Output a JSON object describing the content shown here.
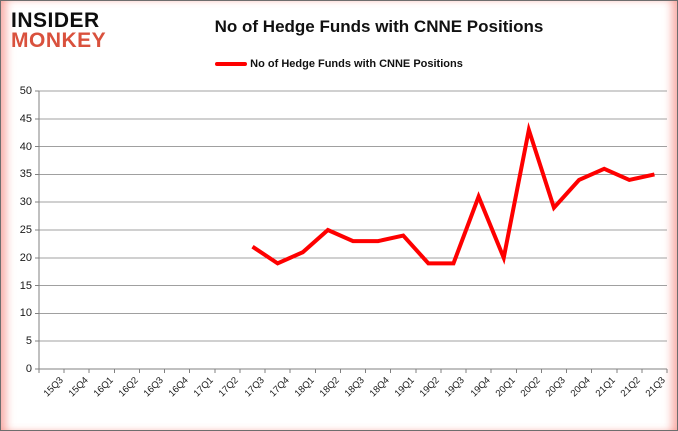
{
  "logo": {
    "line1": "INSIDER",
    "line2": "MONKEY"
  },
  "header": {
    "title": "No of Hedge Funds with CNNE Positions"
  },
  "legend": {
    "label": "No of Hedge Funds with CNNE Positions",
    "swatch_color": "#fe0000"
  },
  "chart_data": {
    "type": "line",
    "title": "No of Hedge Funds with CNNE Positions",
    "categories": [
      "15Q3",
      "15Q4",
      "16Q1",
      "16Q2",
      "16Q3",
      "16Q4",
      "17Q1",
      "17Q2",
      "17Q3",
      "17Q4",
      "18Q1",
      "18Q2",
      "18Q3",
      "18Q4",
      "19Q1",
      "19Q2",
      "19Q3",
      "19Q4",
      "20Q1",
      "20Q2",
      "20Q3",
      "20Q4",
      "21Q1",
      "21Q2",
      "21Q3"
    ],
    "series": [
      {
        "name": "No of Hedge Funds with CNNE Positions",
        "color": "#fe0000",
        "values": [
          null,
          null,
          null,
          null,
          null,
          null,
          null,
          null,
          22,
          19,
          21,
          25,
          23,
          23,
          24,
          19,
          19,
          31,
          20,
          43,
          29,
          34,
          36,
          34,
          35
        ]
      }
    ],
    "ylim": [
      0,
      50
    ],
    "ytick_step": 5,
    "grid": "horizontal",
    "grid_color": "#a0a0a0",
    "axis_color": "#808080",
    "legend_position": "top"
  }
}
